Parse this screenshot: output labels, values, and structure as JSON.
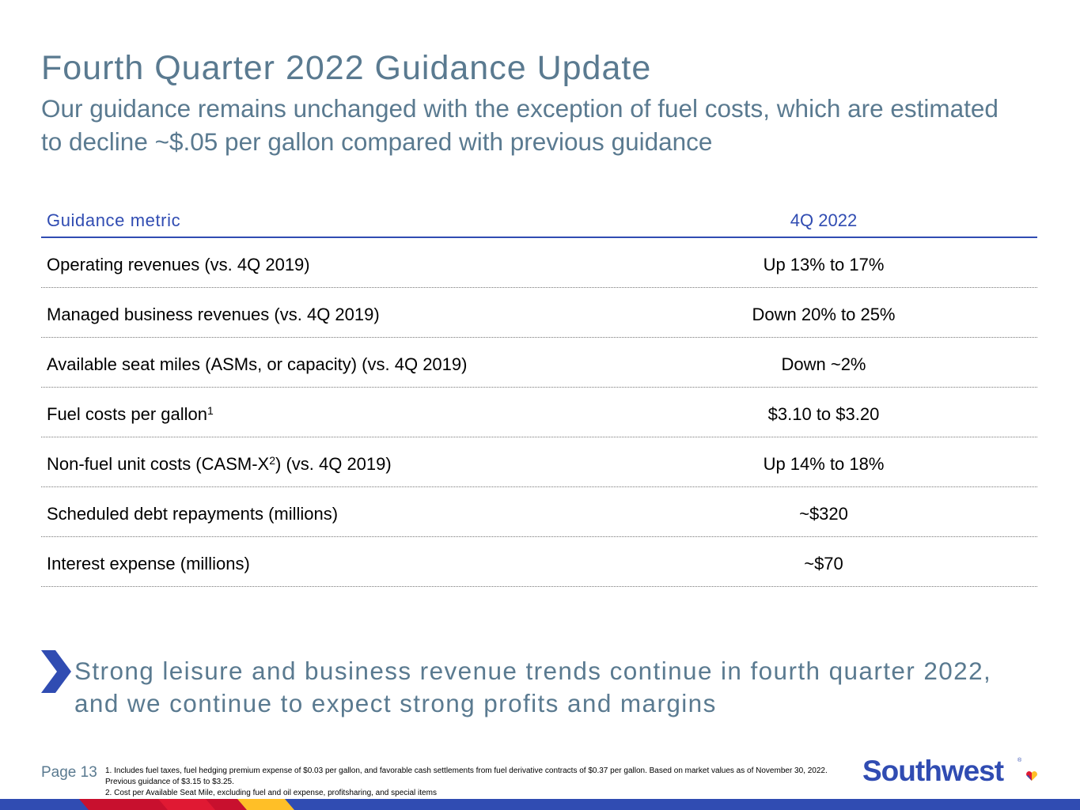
{
  "slide": {
    "title": "Fourth Quarter 2022 Guidance Update",
    "subtitle": "Our guidance remains unchanged with the exception of fuel costs, which are estimated to decline ~$.05 per gallon compared with previous guidance"
  },
  "table": {
    "header_metric": "Guidance metric",
    "header_value": "4Q 2022",
    "rows": [
      {
        "metric": "Operating revenues (vs. 4Q 2019)",
        "value": "Up 13% to 17%"
      },
      {
        "metric": "Managed business revenues (vs. 4Q 2019)",
        "value": "Down 20% to 25%"
      },
      {
        "metric": "Available seat miles (ASMs, or capacity) (vs. 4Q 2019)",
        "value": "Down ~2%"
      },
      {
        "metric_prefix": "Fuel costs per gallon",
        "metric_sup": "1",
        "metric_suffix": "",
        "value": "$3.10 to $3.20"
      },
      {
        "metric_prefix": "Non-fuel unit costs (CASM-X",
        "metric_sup": "2",
        "metric_suffix": ") (vs. 4Q 2019)",
        "value": "Up 14% to 18%"
      },
      {
        "metric": "Scheduled debt repayments (millions)",
        "value": "~$320"
      },
      {
        "metric": "Interest expense (millions)",
        "value": "~$70"
      }
    ]
  },
  "callout": {
    "icon": "chevron-right-icon",
    "text": "Strong leisure and business revenue trends continue in fourth quarter 2022, and we continue to expect strong profits and margins"
  },
  "footer": {
    "page_label": "Page 13",
    "footnote_1": "1. Includes fuel taxes, fuel hedging premium expense of $0.03 per gallon, and favorable cash settlements from fuel derivative contracts of $0.37 per gallon. Based on market values as of November 30, 2022. Previous guidance of $3.15 to $3.25.",
    "footnote_2": "2. Cost per Available Seat Mile, excluding fuel and oil expense, profitsharing, and special items",
    "logo_text": "Southwest",
    "logo_reg": "®"
  },
  "colors": {
    "title_text": "#5a7a90",
    "accent_blue": "#304cb2",
    "heart_red": "#e01933",
    "heart_yellow": "#ffbf27",
    "bar_blue": "#304cb2",
    "bar_red": "#c8102e"
  }
}
